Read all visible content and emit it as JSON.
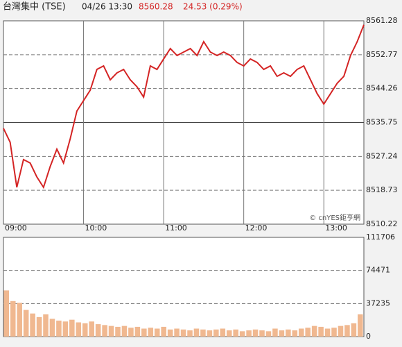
{
  "header": {
    "name": "台灣集中 (TSE)",
    "datetime": "04/26 13:30",
    "price": "8560.28",
    "change": "24.53 (0.29%)"
  },
  "chart_data": [
    {
      "type": "line",
      "watermark": "© cnYES鉅亨網",
      "x": [
        "09:00",
        "09:05",
        "09:10",
        "09:15",
        "09:20",
        "09:25",
        "09:30",
        "09:35",
        "09:40",
        "09:45",
        "09:50",
        "09:55",
        "10:00",
        "10:05",
        "10:10",
        "10:15",
        "10:20",
        "10:25",
        "10:30",
        "10:35",
        "10:40",
        "10:45",
        "10:50",
        "10:55",
        "11:00",
        "11:05",
        "11:10",
        "11:15",
        "11:20",
        "11:25",
        "11:30",
        "11:35",
        "11:40",
        "11:45",
        "11:50",
        "11:55",
        "12:00",
        "12:05",
        "12:10",
        "12:15",
        "12:20",
        "12:25",
        "12:30",
        "12:35",
        "12:40",
        "12:45",
        "12:50",
        "12:55",
        "13:00",
        "13:05",
        "13:10",
        "13:15",
        "13:20",
        "13:25",
        "13:30"
      ],
      "series": [
        {
          "name": "TSE",
          "color": "#d42424",
          "values": [
            8534.28,
            8530.79,
            8519.47,
            8526.44,
            8525.57,
            8522.08,
            8519.47,
            8524.69,
            8529.05,
            8525.57,
            8531.66,
            8538.63,
            8541.25,
            8543.86,
            8549.08,
            8549.96,
            8546.47,
            8548.21,
            8549.08,
            8546.47,
            8544.73,
            8542.12,
            8549.96,
            8549.08,
            8551.7,
            8554.31,
            8552.57,
            8553.44,
            8554.31,
            8552.57,
            8556.05,
            8553.44,
            8552.57,
            8553.44,
            8552.57,
            8550.83,
            8549.96,
            8551.7,
            8550.83,
            8549.08,
            8549.96,
            8547.34,
            8548.21,
            8547.34,
            8549.08,
            8549.96,
            8546.47,
            8542.99,
            8540.37,
            8542.99,
            8545.6,
            8547.34,
            8552.57,
            8556.05,
            8560.28
          ]
        }
      ],
      "ylim": [
        8510.22,
        8561.28
      ],
      "yticks": [
        8561.28,
        8552.77,
        8544.26,
        8535.75,
        8527.24,
        8518.73,
        8510.22
      ],
      "xticks": [
        "09:00",
        "10:00",
        "11:00",
        "12:00",
        "13:00"
      ],
      "grid": true
    },
    {
      "type": "bar",
      "color": "#f0b890",
      "values": [
        52000,
        40000,
        38000,
        30000,
        26000,
        22000,
        25000,
        20000,
        18000,
        17000,
        19000,
        16000,
        15000,
        17000,
        14000,
        13000,
        12000,
        11000,
        12000,
        10000,
        11000,
        9000,
        10000,
        9000,
        11000,
        8000,
        9000,
        8000,
        7000,
        9000,
        8000,
        7000,
        8000,
        9000,
        7000,
        8000,
        6000,
        7000,
        8000,
        7000,
        6000,
        9000,
        7000,
        8000,
        7000,
        9000,
        10000,
        12000,
        11000,
        9000,
        10000,
        12000,
        13000,
        15000,
        25000
      ],
      "ylim": [
        0,
        111706
      ],
      "yticks": [
        111706,
        74471,
        37235,
        0
      ],
      "grid": true
    }
  ]
}
